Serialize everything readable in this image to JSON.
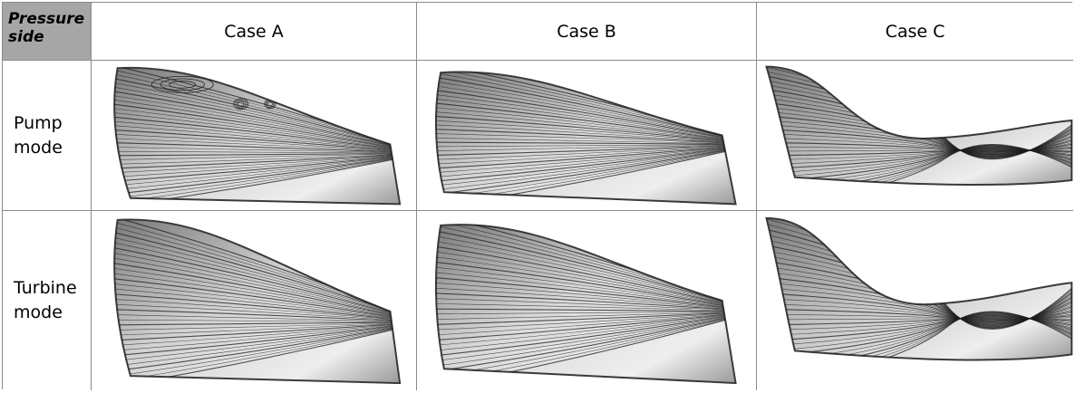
{
  "table": {
    "corner_label": "Pressure\nside",
    "columns": [
      "Case A",
      "Case B",
      "Case C"
    ],
    "rows": [
      "Pump\nmode",
      "Turbine\nmode"
    ]
  },
  "images": [
    [
      {
        "name": "streamline-plot-pump-case-a",
        "shape": "a",
        "vortex": true,
        "shade": "#cfcfcf"
      },
      {
        "name": "streamline-plot-pump-case-b",
        "shape": "b",
        "vortex": false,
        "shade": "#d6d6d6"
      },
      {
        "name": "streamline-plot-pump-case-c",
        "shape": "c",
        "vortex": false,
        "shade": "#bdbdbd"
      }
    ],
    [
      {
        "name": "streamline-plot-turbine-case-a",
        "shape": "a",
        "vortex": false,
        "shade": "#d2d2d2"
      },
      {
        "name": "streamline-plot-turbine-case-b",
        "shape": "b",
        "vortex": false,
        "shade": "#d9d9d9"
      },
      {
        "name": "streamline-plot-turbine-case-c",
        "shape": "c",
        "vortex": false,
        "shade": "#c4c4c4"
      }
    ]
  ]
}
